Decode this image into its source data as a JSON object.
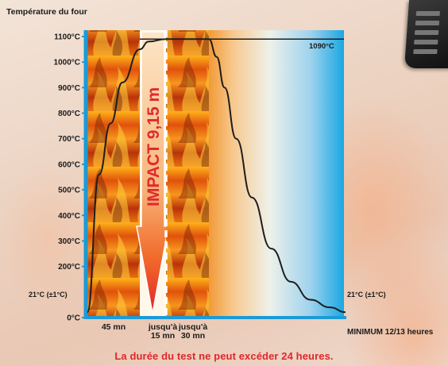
{
  "chart_data": {
    "type": "line",
    "title": "Température du four",
    "y_ticks": [
      "1100°C",
      "1000°C",
      "900°C",
      "800°C",
      "700°C",
      "600°C",
      "500°C",
      "400°C",
      "300°C",
      "200°C",
      "0°C"
    ],
    "y_tick_values": [
      1100,
      1000,
      900,
      800,
      700,
      600,
      500,
      400,
      300,
      200,
      0
    ],
    "ylim": [
      0,
      1100
    ],
    "x_segments": [
      {
        "label_lines": [
          "45 mn"
        ],
        "minutes": 45
      },
      {
        "label_lines": [
          "jusqu'à",
          "15 mn"
        ],
        "minutes": 15
      },
      {
        "label_lines": [
          "jusqu'à",
          "30 mn"
        ],
        "minutes": 30
      }
    ],
    "x_end_label": "MINIMUM 12/13 heures",
    "series": [
      {
        "x": [
          0,
          10,
          20,
          30,
          45,
          50,
          60,
          75,
          90,
          110,
          130,
          160,
          200,
          250,
          300,
          350,
          400,
          440
        ],
        "y": [
          21,
          560,
          760,
          920,
          1050,
          1080,
          1090,
          1090,
          1090,
          1020,
          900,
          700,
          470,
          270,
          140,
          70,
          40,
          21
        ]
      }
    ],
    "annotations": {
      "top_value": "1090°C",
      "left_ambient": "21°C (±1°C)",
      "right_ambient": "21°C (±1°C)",
      "impact_text": "IMPACT 9,15 m"
    },
    "grid": false
  },
  "footer_note": "La durée du test ne peut excéder 24 heures.",
  "colors": {
    "axis_blue": "#1c9bd6",
    "arrow_red": "#e0252b",
    "impact_text": "#e02a2f",
    "footer_text": "#e2262a",
    "cold_blue": "#1aa7e3"
  }
}
